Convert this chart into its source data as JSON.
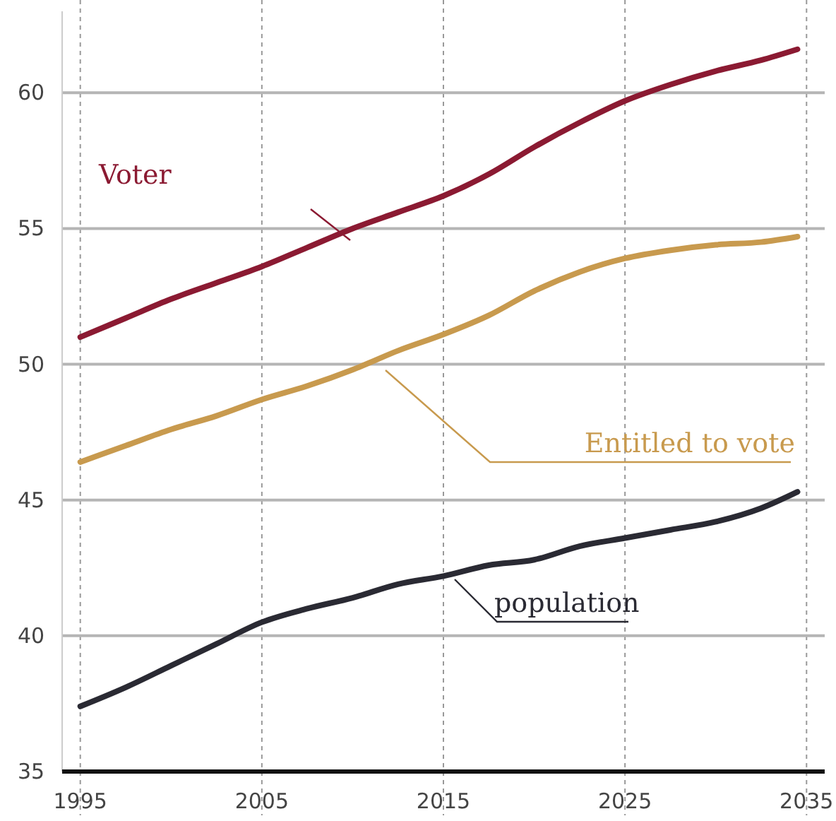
{
  "chart_data": {
    "type": "line",
    "xlim": [
      1994,
      2036
    ],
    "xticks": [
      1995,
      2005,
      2015,
      2025,
      2035
    ],
    "ylim": [
      35,
      63
    ],
    "yticks": [
      35,
      40,
      45,
      50,
      55,
      60
    ],
    "grid": true,
    "marker": "none",
    "line_style": "solid",
    "series": [
      {
        "name": "Voter",
        "color": "#8b1a32",
        "x": [
          1995,
          1997.5,
          2000,
          2002.5,
          2005,
          2007.5,
          2010,
          2012.5,
          2015,
          2017.5,
          2020,
          2022.5,
          2025,
          2027.5,
          2030,
          2032.5,
          2034.5
        ],
        "values": [
          51.0,
          51.7,
          52.4,
          53.0,
          53.6,
          54.3,
          55.0,
          55.6,
          56.2,
          57.0,
          58.0,
          58.9,
          59.7,
          60.3,
          60.8,
          61.2,
          61.6
        ]
      },
      {
        "name": "Entitled to vote",
        "color": "#c89a4e",
        "x": [
          1995,
          1997.5,
          2000,
          2002.5,
          2005,
          2007.5,
          2010,
          2012.5,
          2015,
          2017.5,
          2020,
          2022.5,
          2025,
          2027.5,
          2030,
          2032.5,
          2034.5
        ],
        "values": [
          46.4,
          47.0,
          47.6,
          48.1,
          48.7,
          49.2,
          49.8,
          50.5,
          51.1,
          51.8,
          52.7,
          53.4,
          53.9,
          54.2,
          54.4,
          54.5,
          54.7
        ]
      },
      {
        "name": "population",
        "color": "#2a2a33",
        "x": [
          1995,
          1997.5,
          2000,
          2002.5,
          2005,
          2007.5,
          2010,
          2012.5,
          2015,
          2017.5,
          2020,
          2022.5,
          2025,
          2027.5,
          2030,
          2032.5,
          2034.5
        ],
        "values": [
          37.4,
          38.1,
          38.9,
          39.7,
          40.5,
          41.0,
          41.4,
          41.9,
          42.2,
          42.6,
          42.8,
          43.3,
          43.6,
          43.9,
          44.2,
          44.7,
          45.3
        ]
      }
    ]
  }
}
